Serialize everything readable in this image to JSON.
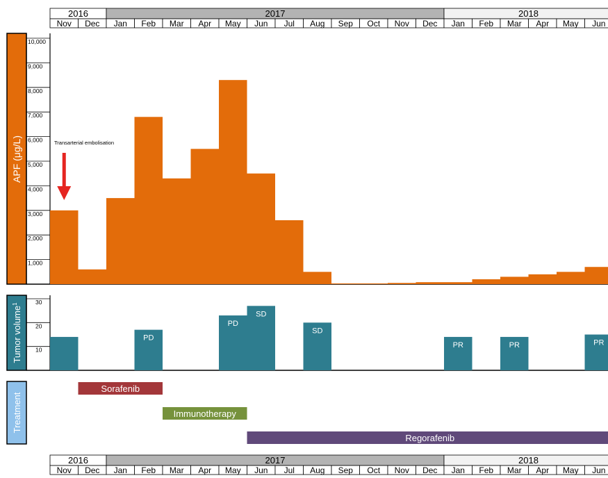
{
  "timeline": {
    "years": [
      {
        "label": "2016",
        "months": 2,
        "fill": "#ffffff"
      },
      {
        "label": "2017",
        "months": 12,
        "fill": "#b3b3b3"
      },
      {
        "label": "2018",
        "months": 6,
        "fill": "#f2f2f2"
      }
    ],
    "months": [
      "Nov",
      "Dec",
      "Jan",
      "Feb",
      "Mar",
      "Apr",
      "May",
      "Jun",
      "Jul",
      "Aug",
      "Sep",
      "Oct",
      "Nov",
      "Dec",
      "Jan",
      "Feb",
      "Mar",
      "Apr",
      "May",
      "Jun"
    ]
  },
  "chart_data": [
    {
      "type": "bar",
      "ylabel": "APF (μg/L)",
      "ylim": [
        0,
        10000
      ],
      "yticks": [
        "1,000",
        "2,000",
        "3,000",
        "4,000",
        "5,000",
        "6,000",
        "7,000",
        "8,000",
        "9,000",
        "10,000"
      ],
      "categories": [
        "Nov 2016",
        "Dec 2016",
        "Jan 2017",
        "Feb 2017",
        "Mar 2017",
        "Apr 2017",
        "May 2017",
        "Jun 2017",
        "Jul 2017",
        "Aug 2017",
        "Sep 2017",
        "Oct 2017",
        "Nov 2017",
        "Dec 2017",
        "Jan 2018",
        "Feb 2018",
        "Mar 2018",
        "Apr 2018",
        "May 2018",
        "Jun 2018"
      ],
      "values": [
        3000,
        600,
        3500,
        6800,
        4300,
        5500,
        8300,
        4500,
        2600,
        500,
        30,
        30,
        50,
        80,
        80,
        200,
        300,
        400,
        500,
        700
      ],
      "color": "#e36c0a",
      "annotation": {
        "text": "Transarterial embolisation",
        "category": "Nov 2016",
        "arrow_color": "#e52521"
      }
    },
    {
      "type": "bar",
      "ylabel": "Tumor volume",
      "ylabel_sup": "1",
      "ylim": [
        0,
        30
      ],
      "yticks": [
        "10",
        "20",
        "30"
      ],
      "color": "#2e7d8f",
      "bars": [
        {
          "category": "Nov 2016",
          "value": 14,
          "label": ""
        },
        {
          "category": "Feb 2017",
          "value": 17,
          "label": "PD"
        },
        {
          "category": "May 2017",
          "value": 23,
          "label": "PD"
        },
        {
          "category": "Jun 2017",
          "value": 27,
          "label": "SD"
        },
        {
          "category": "Aug 2017",
          "value": 20,
          "label": "SD"
        },
        {
          "category": "Jan 2018",
          "value": 14,
          "label": "PR"
        },
        {
          "category": "Mar 2018",
          "value": 14,
          "label": "PR"
        },
        {
          "category": "Jun 2018",
          "value": 15,
          "label": "PR"
        }
      ]
    }
  ],
  "treatment": {
    "label": "Treatment",
    "label_color": "#8fc1eb",
    "items": [
      {
        "name": "Sorafenib",
        "start": 1,
        "end": 4,
        "color": "#a3373a"
      },
      {
        "name": "Immunotherapy",
        "start": 4,
        "end": 7,
        "color": "#76923c"
      },
      {
        "name": "Regorafenib",
        "start": 7,
        "end": 20,
        "color": "#60497a"
      }
    ]
  }
}
